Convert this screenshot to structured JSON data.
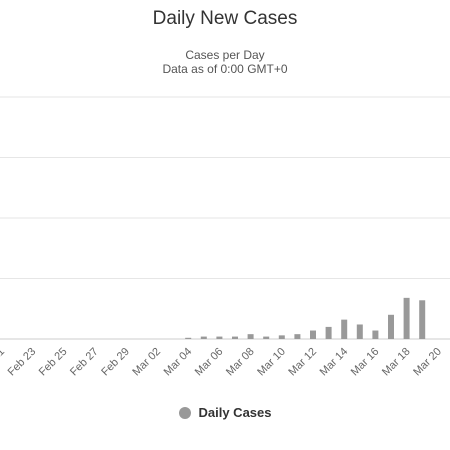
{
  "chart_data": {
    "type": "bar",
    "title": "Daily New Cases",
    "subtitle_lines": [
      "Cases per Day",
      "Data as of 0:00 GMT+0"
    ],
    "xlabel": "",
    "ylabel": "",
    "grid": true,
    "legend_position": "bottom-center",
    "categories": [
      "Feb 21",
      "Feb 22",
      "Feb 23",
      "Feb 24",
      "Feb 25",
      "Feb 26",
      "Feb 27",
      "Feb 28",
      "Feb 29",
      "Mar 01",
      "Mar 02",
      "Mar 03",
      "Mar 04",
      "Mar 05",
      "Mar 06",
      "Mar 07",
      "Mar 08",
      "Mar 09",
      "Mar 10",
      "Mar 11",
      "Mar 12",
      "Mar 13",
      "Mar 14",
      "Mar 15",
      "Mar 16",
      "Mar 17",
      "Mar 18",
      "Mar 19",
      "Mar 20"
    ],
    "tick_labels": [
      "Feb 21",
      "Feb 23",
      "Feb 25",
      "Feb 27",
      "Feb 29",
      "Mar 02",
      "Mar 04",
      "Mar 06",
      "Mar 08",
      "Mar 10",
      "Mar 12",
      "Mar 14",
      "Mar 16",
      "Mar 18",
      "Mar 20"
    ],
    "ylim": [
      0,
      200
    ],
    "y_gridlines": [
      0,
      50,
      100,
      150,
      200
    ],
    "series": [
      {
        "name": "Daily Cases",
        "color": "#999999",
        "values": [
          0,
          0,
          0,
          0,
          0,
          0,
          0,
          0,
          0,
          0,
          0,
          0,
          1,
          2,
          2,
          2,
          4,
          2,
          3,
          4,
          7,
          10,
          16,
          12,
          7,
          20,
          34,
          32,
          0
        ]
      }
    ]
  }
}
